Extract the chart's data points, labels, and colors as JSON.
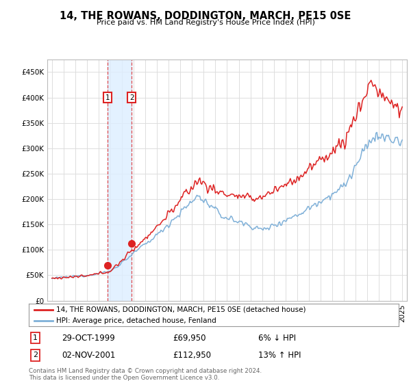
{
  "title": "14, THE ROWANS, DODDINGTON, MARCH, PE15 0SE",
  "subtitle": "Price paid vs. HM Land Registry's House Price Index (HPI)",
  "legend_line1": "14, THE ROWANS, DODDINGTON, MARCH, PE15 0SE (detached house)",
  "legend_line2": "HPI: Average price, detached house, Fenland",
  "transaction1_date": "29-OCT-1999",
  "transaction1_price": 69950,
  "transaction1_note": "6% ↓ HPI",
  "transaction2_date": "02-NOV-2001",
  "transaction2_price": 112950,
  "transaction2_note": "13% ↑ HPI",
  "footer": "Contains HM Land Registry data © Crown copyright and database right 2024.\nThis data is licensed under the Open Government Licence v3.0.",
  "red_color": "#dd2222",
  "blue_color": "#7fb0d8",
  "background_color": "#ffffff",
  "grid_color": "#dddddd",
  "shade_color": "#ddeeff",
  "ylim": [
    0,
    475000
  ],
  "yticks": [
    0,
    50000,
    100000,
    150000,
    200000,
    250000,
    300000,
    350000,
    400000,
    450000
  ],
  "xlim_start": 1994.6,
  "xlim_end": 2025.4
}
